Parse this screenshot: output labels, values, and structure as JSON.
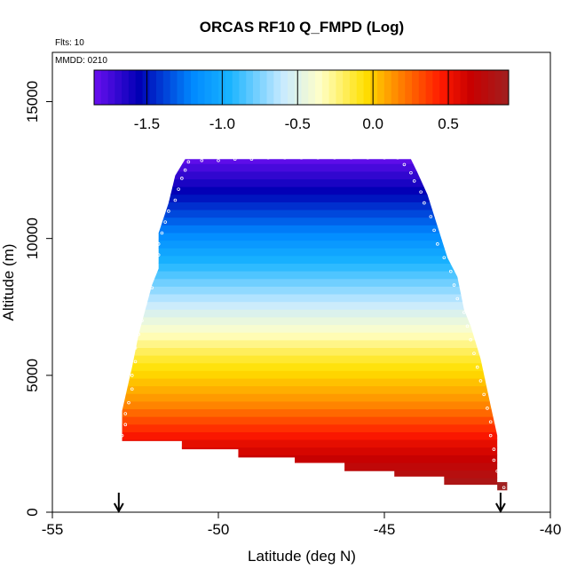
{
  "chart_data": {
    "type": "heatmap",
    "title": "ORCAS RF10 Q_FMPD (Log)",
    "annotations": [
      "Flts: 10",
      "MMDD: 0210"
    ],
    "xlabel": "Latitude (deg N)",
    "ylabel": "Altitude (m)",
    "xlim": [
      -55,
      -40
    ],
    "ylim": [
      0,
      16800
    ],
    "x_ticks": [
      -55,
      -50,
      -45,
      -40
    ],
    "x_tick_labels": [
      "-55",
      "-50",
      "-45",
      "-40"
    ],
    "y_ticks": [
      0,
      5000,
      10000,
      15000
    ],
    "y_tick_labels": [
      "0",
      "5000",
      "10000",
      "15000"
    ],
    "colorbar": {
      "min": -1.85,
      "max": 0.9,
      "ticks": [
        -1.5,
        -1.0,
        -0.5,
        0.0,
        0.5
      ],
      "tick_labels": [
        "-1.5",
        "-1.0",
        "-0.5",
        "0.0",
        "0.5"
      ],
      "colors": [
        "#6a0ff0",
        "#0000b4",
        "#0088ff",
        "#19b4ff",
        "#c8eaff",
        "#ffffc8",
        "#ffe000",
        "#ff8c00",
        "#ff1a00",
        "#c80000",
        "#a02020"
      ],
      "color_stops": [
        -1.85,
        -1.55,
        -1.2,
        -0.95,
        -0.6,
        -0.35,
        -0.05,
        0.15,
        0.45,
        0.65,
        0.9
      ]
    },
    "field": {
      "value_at_altitude": [
        {
          "alt": 800,
          "value": 0.88
        },
        {
          "alt": 2500,
          "value": 0.55
        },
        {
          "alt": 4000,
          "value": 0.15
        },
        {
          "alt": 5500,
          "value": -0.1
        },
        {
          "alt": 7000,
          "value": -0.45
        },
        {
          "alt": 8500,
          "value": -0.8
        },
        {
          "alt": 10000,
          "value": -1.15
        },
        {
          "alt": 11500,
          "value": -1.5
        },
        {
          "alt": 12900,
          "value": -1.82
        }
      ],
      "left_edge": [
        {
          "alt": 2600,
          "lat": -52.9
        },
        {
          "alt": 3700,
          "lat": -52.9
        },
        {
          "alt": 5300,
          "lat": -52.6
        },
        {
          "alt": 6500,
          "lat": -52.4
        },
        {
          "alt": 7400,
          "lat": -52.2
        },
        {
          "alt": 8300,
          "lat": -52.0
        },
        {
          "alt": 8900,
          "lat": -51.8
        },
        {
          "alt": 10200,
          "lat": -51.8
        },
        {
          "alt": 11300,
          "lat": -51.5
        },
        {
          "alt": 12300,
          "lat": -51.3
        },
        {
          "alt": 12900,
          "lat": -51.0
        }
      ],
      "right_edge": [
        {
          "alt": 800,
          "lat": -41.3
        },
        {
          "alt": 1100,
          "lat": -41.6
        },
        {
          "alt": 2800,
          "lat": -41.6
        },
        {
          "alt": 3900,
          "lat": -41.8
        },
        {
          "alt": 5600,
          "lat": -42.1
        },
        {
          "alt": 6800,
          "lat": -42.4
        },
        {
          "alt": 7400,
          "lat": -42.6
        },
        {
          "alt": 8600,
          "lat": -42.8
        },
        {
          "alt": 9300,
          "lat": -43.1
        },
        {
          "alt": 11600,
          "lat": -43.7
        },
        {
          "alt": 12400,
          "lat": -44.0
        },
        {
          "alt": 12900,
          "lat": -44.2
        }
      ],
      "bottom_steps": [
        {
          "lat_from": -52.9,
          "lat_to": -51.1,
          "alt": 2600
        },
        {
          "lat_from": -51.1,
          "lat_to": -49.4,
          "alt": 2300
        },
        {
          "lat_from": -49.4,
          "lat_to": -47.7,
          "alt": 2000
        },
        {
          "lat_from": -47.7,
          "lat_to": -46.2,
          "alt": 1800
        },
        {
          "lat_from": -46.2,
          "lat_to": -44.7,
          "alt": 1500
        },
        {
          "lat_from": -44.7,
          "lat_to": -43.2,
          "alt": 1300
        },
        {
          "lat_from": -43.2,
          "lat_to": -41.6,
          "alt": 1000
        }
      ]
    },
    "flight_track": [
      {
        "lat": -50.9,
        "alt": 12800
      },
      {
        "lat": -50.5,
        "alt": 12850
      },
      {
        "lat": -50.0,
        "alt": 12850
      },
      {
        "lat": -49.5,
        "alt": 12900
      },
      {
        "lat": -49.0,
        "alt": 12900
      },
      {
        "lat": -48.5,
        "alt": 12950
      },
      {
        "lat": -48.0,
        "alt": 12950
      },
      {
        "lat": -47.5,
        "alt": 12950
      },
      {
        "lat": -47.0,
        "alt": 12950
      },
      {
        "lat": -46.5,
        "alt": 12950
      },
      {
        "lat": -46.0,
        "alt": 12950
      },
      {
        "lat": -45.5,
        "alt": 12950
      },
      {
        "lat": -45.0,
        "alt": 12950
      },
      {
        "lat": -44.6,
        "alt": 12950
      },
      {
        "lat": -51.0,
        "alt": 12500
      },
      {
        "lat": -51.1,
        "alt": 12200
      },
      {
        "lat": -51.2,
        "alt": 11800
      },
      {
        "lat": -51.3,
        "alt": 11400
      },
      {
        "lat": -51.5,
        "alt": 11000
      },
      {
        "lat": -51.6,
        "alt": 10600
      },
      {
        "lat": -51.7,
        "alt": 10200
      },
      {
        "lat": -51.8,
        "alt": 9800
      },
      {
        "lat": -51.8,
        "alt": 9400
      },
      {
        "lat": -51.9,
        "alt": 9000
      },
      {
        "lat": -52.0,
        "alt": 8600
      },
      {
        "lat": -52.0,
        "alt": 8200
      },
      {
        "lat": -52.2,
        "alt": 7600
      },
      {
        "lat": -52.3,
        "alt": 7000
      },
      {
        "lat": -52.4,
        "alt": 6500
      },
      {
        "lat": -52.5,
        "alt": 6000
      },
      {
        "lat": -52.5,
        "alt": 5500
      },
      {
        "lat": -52.6,
        "alt": 5000
      },
      {
        "lat": -52.6,
        "alt": 4500
      },
      {
        "lat": -52.7,
        "alt": 4000
      },
      {
        "lat": -52.8,
        "alt": 3600
      },
      {
        "lat": -52.8,
        "alt": 3200
      },
      {
        "lat": -52.9,
        "alt": 2800
      },
      {
        "lat": -44.4,
        "alt": 12700
      },
      {
        "lat": -44.2,
        "alt": 12400
      },
      {
        "lat": -44.1,
        "alt": 12100
      },
      {
        "lat": -43.9,
        "alt": 11700
      },
      {
        "lat": -43.8,
        "alt": 11300
      },
      {
        "lat": -43.6,
        "alt": 10800
      },
      {
        "lat": -43.5,
        "alt": 10300
      },
      {
        "lat": -43.4,
        "alt": 9800
      },
      {
        "lat": -43.2,
        "alt": 9300
      },
      {
        "lat": -43.0,
        "alt": 8800
      },
      {
        "lat": -42.9,
        "alt": 8300
      },
      {
        "lat": -42.8,
        "alt": 7800
      },
      {
        "lat": -42.6,
        "alt": 7300
      },
      {
        "lat": -42.5,
        "alt": 6800
      },
      {
        "lat": -42.4,
        "alt": 6300
      },
      {
        "lat": -42.3,
        "alt": 5800
      },
      {
        "lat": -42.2,
        "alt": 5300
      },
      {
        "lat": -42.1,
        "alt": 4800
      },
      {
        "lat": -42.0,
        "alt": 4300
      },
      {
        "lat": -41.9,
        "alt": 3800
      },
      {
        "lat": -41.8,
        "alt": 3300
      },
      {
        "lat": -41.8,
        "alt": 2800
      },
      {
        "lat": -41.7,
        "alt": 2300
      },
      {
        "lat": -41.7,
        "alt": 1900
      },
      {
        "lat": -41.6,
        "alt": 1500
      },
      {
        "lat": -41.4,
        "alt": 900
      }
    ],
    "arrows": [
      {
        "lat": -53.0
      },
      {
        "lat": -41.5
      }
    ]
  }
}
